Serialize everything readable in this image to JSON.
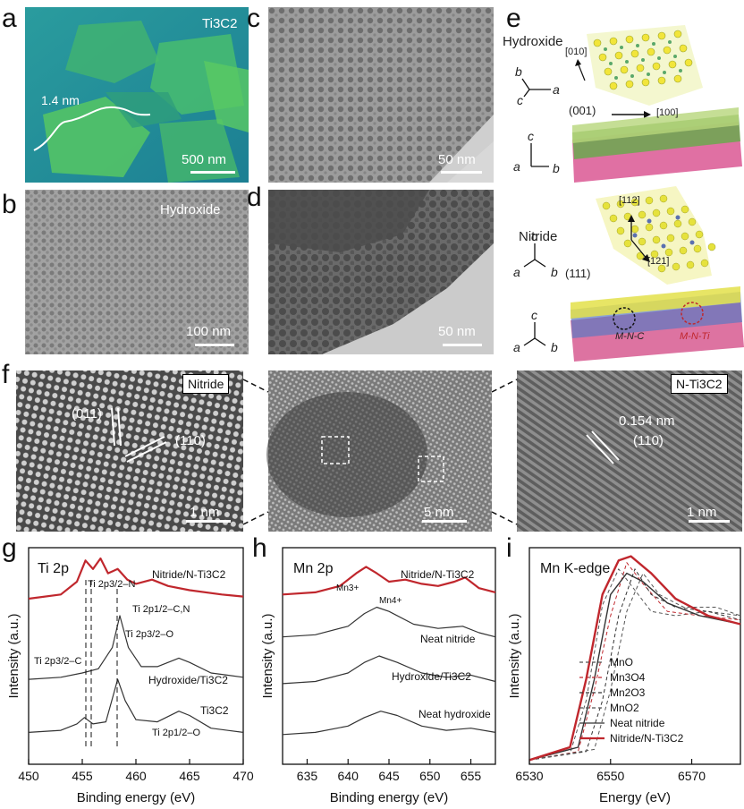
{
  "panels": {
    "a": {
      "letter": "a",
      "label": "Ti3C2",
      "thickness": "1.4 nm",
      "scale": "500 nm"
    },
    "b": {
      "letter": "b",
      "label": "Hydroxide",
      "scale": "100 nm"
    },
    "c": {
      "letter": "c",
      "scale": "50 nm"
    },
    "d": {
      "letter": "d",
      "scale": "50 nm"
    },
    "e": {
      "letter": "e",
      "hydroxide_title": "Hydroxide",
      "nitride_title": "Nitride",
      "dir_010": "[010]",
      "dir_100": "[100]",
      "plane_001": "(001)",
      "plane_111": "(111)",
      "dir_112": "[112]",
      "dir_121": "[121]",
      "axis_a": "a",
      "axis_b": "b",
      "axis_c": "c",
      "mnc": "M-N-C",
      "mnti": "M-N-Ti"
    },
    "f": {
      "letter": "f",
      "left_label": "Nitride",
      "right_label": "N-Ti3C2",
      "plane1": "(011)",
      "plane2": "(110)",
      "d_spacing": "0.154 nm",
      "plane3": "(110)",
      "scale_left": "1 nm",
      "scale_mid": "5 nm",
      "scale_right": "1 nm"
    },
    "g": {
      "letter": "g",
      "title": "Ti 2p",
      "xlabel": "Binding energy (eV)",
      "ylabel": "Intensity (a.u.)",
      "ticks": [
        "450",
        "455",
        "460",
        "465",
        "470"
      ],
      "ann_ti2p32n": "Ti 2p3/2–N",
      "ann_ti2p12cn": "Ti 2p1/2–C,N",
      "ann_ti2p32o": "Ti 2p3/2–O",
      "ann_ti2p32c": "Ti 2p3/2–C",
      "ann_ti2p12o": "Ti 2p1/2–O",
      "curve1": "Nitride/N-Ti3C2",
      "curve2": "Hydroxide/Ti3C2",
      "curve3": "Ti3C2"
    },
    "h": {
      "letter": "h",
      "title": "Mn 2p",
      "xlabel": "Binding energy (eV)",
      "ylabel": "Intensity (a.u.)",
      "ticks": [
        "635",
        "640",
        "645",
        "650",
        "655"
      ],
      "ann_mn3": "Mn3+",
      "ann_mn4": "Mn4+",
      "curve1": "Nitride/N-Ti3C2",
      "curve2": "Neat nitride",
      "curve3": "Hydroxide/Ti3C2",
      "curve4": "Neat hydroxide"
    },
    "i": {
      "letter": "i",
      "title": "Mn K-edge",
      "xlabel": "Energy (eV)",
      "ylabel": "Intensity (a.u.)",
      "ticks": [
        "6530",
        "6550",
        "6570"
      ],
      "legend": [
        "MnO",
        "Mn3O4",
        "Mn2O3",
        "MnO2",
        "Neat nitride",
        "Nitride/N-Ti3C2"
      ]
    }
  },
  "colors": {
    "highlight_red": "#c0272d",
    "afm_bg": "#1f8a9b",
    "afm_flake": "#4fc06a"
  },
  "chart_data": [
    {
      "type": "line",
      "title": "Ti 2p",
      "xlabel": "Binding energy (eV)",
      "ylabel": "Intensity (a.u.)",
      "xlim": [
        450,
        470
      ],
      "series": [
        {
          "name": "Nitride/N-Ti3C2",
          "x": [
            450,
            453,
            454.5,
            455.3,
            456,
            456.7,
            457.4,
            458.3,
            459.2,
            460,
            461.5,
            463,
            465,
            468,
            470
          ],
          "y": [
            0.78,
            0.8,
            0.86,
            0.96,
            0.92,
            0.97,
            0.9,
            0.92,
            0.87,
            0.85,
            0.87,
            0.84,
            0.82,
            0.8,
            0.79
          ]
        },
        {
          "name": "Hydroxide/Ti3C2",
          "x": [
            450,
            453,
            455,
            456.5,
            457.8,
            458.5,
            459.3,
            460.5,
            462,
            464,
            465,
            467,
            470
          ],
          "y": [
            0.4,
            0.41,
            0.43,
            0.45,
            0.55,
            0.7,
            0.55,
            0.46,
            0.46,
            0.5,
            0.48,
            0.43,
            0.41
          ]
        },
        {
          "name": "Ti3C2",
          "x": [
            450,
            453,
            454.5,
            455.2,
            456,
            457.2,
            458.3,
            459,
            460,
            462,
            464,
            465,
            467,
            470
          ],
          "y": [
            0.15,
            0.16,
            0.19,
            0.22,
            0.19,
            0.2,
            0.4,
            0.3,
            0.21,
            0.2,
            0.25,
            0.23,
            0.17,
            0.15
          ]
        }
      ]
    },
    {
      "type": "line",
      "title": "Mn 2p",
      "xlabel": "Binding energy (eV)",
      "ylabel": "Intensity (a.u.)",
      "xlim": [
        632,
        658
      ],
      "series": [
        {
          "name": "Nitride/N-Ti3C2",
          "x": [
            632,
            636,
            639,
            641,
            642.2,
            643.5,
            645,
            647,
            649,
            651,
            653,
            654.3,
            656,
            658
          ],
          "y": [
            0.8,
            0.81,
            0.84,
            0.9,
            0.93,
            0.9,
            0.86,
            0.87,
            0.85,
            0.84,
            0.86,
            0.88,
            0.83,
            0.81
          ]
        },
        {
          "name": "Neat nitride",
          "x": [
            632,
            636,
            640,
            642,
            643.5,
            645,
            648,
            651,
            654,
            656,
            658
          ],
          "y": [
            0.6,
            0.61,
            0.65,
            0.71,
            0.74,
            0.72,
            0.66,
            0.64,
            0.65,
            0.62,
            0.6
          ]
        },
        {
          "name": "Hydroxide/Ti3C2",
          "x": [
            632,
            636,
            640,
            642,
            643.8,
            646,
            649,
            652,
            655,
            658
          ],
          "y": [
            0.38,
            0.39,
            0.43,
            0.48,
            0.51,
            0.48,
            0.43,
            0.41,
            0.42,
            0.39
          ]
        },
        {
          "name": "Neat hydroxide",
          "x": [
            632,
            636,
            640,
            642,
            644,
            646,
            649,
            652,
            655,
            658
          ],
          "y": [
            0.14,
            0.15,
            0.18,
            0.22,
            0.25,
            0.23,
            0.18,
            0.16,
            0.17,
            0.15
          ]
        }
      ]
    },
    {
      "type": "line",
      "title": "Mn K-edge",
      "xlabel": "Energy (eV)",
      "ylabel": "Intensity (a.u.)",
      "xlim": [
        6530,
        6582
      ],
      "series": [
        {
          "name": "MnO",
          "x": [
            6530,
            6540,
            6544,
            6548,
            6552,
            6556,
            6560,
            6566,
            6574,
            6582
          ],
          "y": [
            0.02,
            0.05,
            0.3,
            0.75,
            0.92,
            0.82,
            0.72,
            0.7,
            0.72,
            0.7
          ]
        },
        {
          "name": "Mn3O4",
          "x": [
            6530,
            6542,
            6546,
            6550,
            6554,
            6558,
            6564,
            6572,
            6582
          ],
          "y": [
            0.02,
            0.06,
            0.35,
            0.7,
            0.95,
            0.85,
            0.72,
            0.7,
            0.68
          ]
        },
        {
          "name": "Mn2O3",
          "x": [
            6530,
            6544,
            6548,
            6552,
            6556,
            6560,
            6566,
            6574,
            6582
          ],
          "y": [
            0.02,
            0.06,
            0.3,
            0.7,
            0.92,
            0.8,
            0.74,
            0.72,
            0.68
          ]
        },
        {
          "name": "MnO2",
          "x": [
            6530,
            6546,
            6550,
            6554,
            6558,
            6562,
            6568,
            6576,
            6582
          ],
          "y": [
            0.02,
            0.07,
            0.35,
            0.72,
            0.9,
            0.8,
            0.74,
            0.74,
            0.7
          ]
        },
        {
          "name": "Neat nitride",
          "x": [
            6530,
            6542,
            6546,
            6550,
            6554,
            6558,
            6564,
            6572,
            6582
          ],
          "y": [
            0.02,
            0.08,
            0.4,
            0.8,
            0.9,
            0.86,
            0.76,
            0.7,
            0.66
          ]
        },
        {
          "name": "Nitride/N-Ti3C2",
          "x": [
            6530,
            6540,
            6544,
            6548,
            6552,
            6555,
            6560,
            6566,
            6574,
            6582
          ],
          "y": [
            0.02,
            0.08,
            0.4,
            0.8,
            0.96,
            0.98,
            0.9,
            0.78,
            0.7,
            0.66
          ]
        }
      ]
    }
  ]
}
